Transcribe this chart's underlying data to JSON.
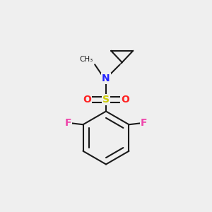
{
  "background_color": "#efefef",
  "bond_color": "#1a1a1a",
  "N_color": "#2222ff",
  "S_color": "#cccc00",
  "O_color": "#ff2222",
  "F_color": "#ee44aa",
  "line_width": 1.5,
  "fig_width": 3.0,
  "fig_height": 3.0,
  "dpi": 100,
  "xlim": [
    0,
    10
  ],
  "ylim": [
    0,
    10
  ]
}
